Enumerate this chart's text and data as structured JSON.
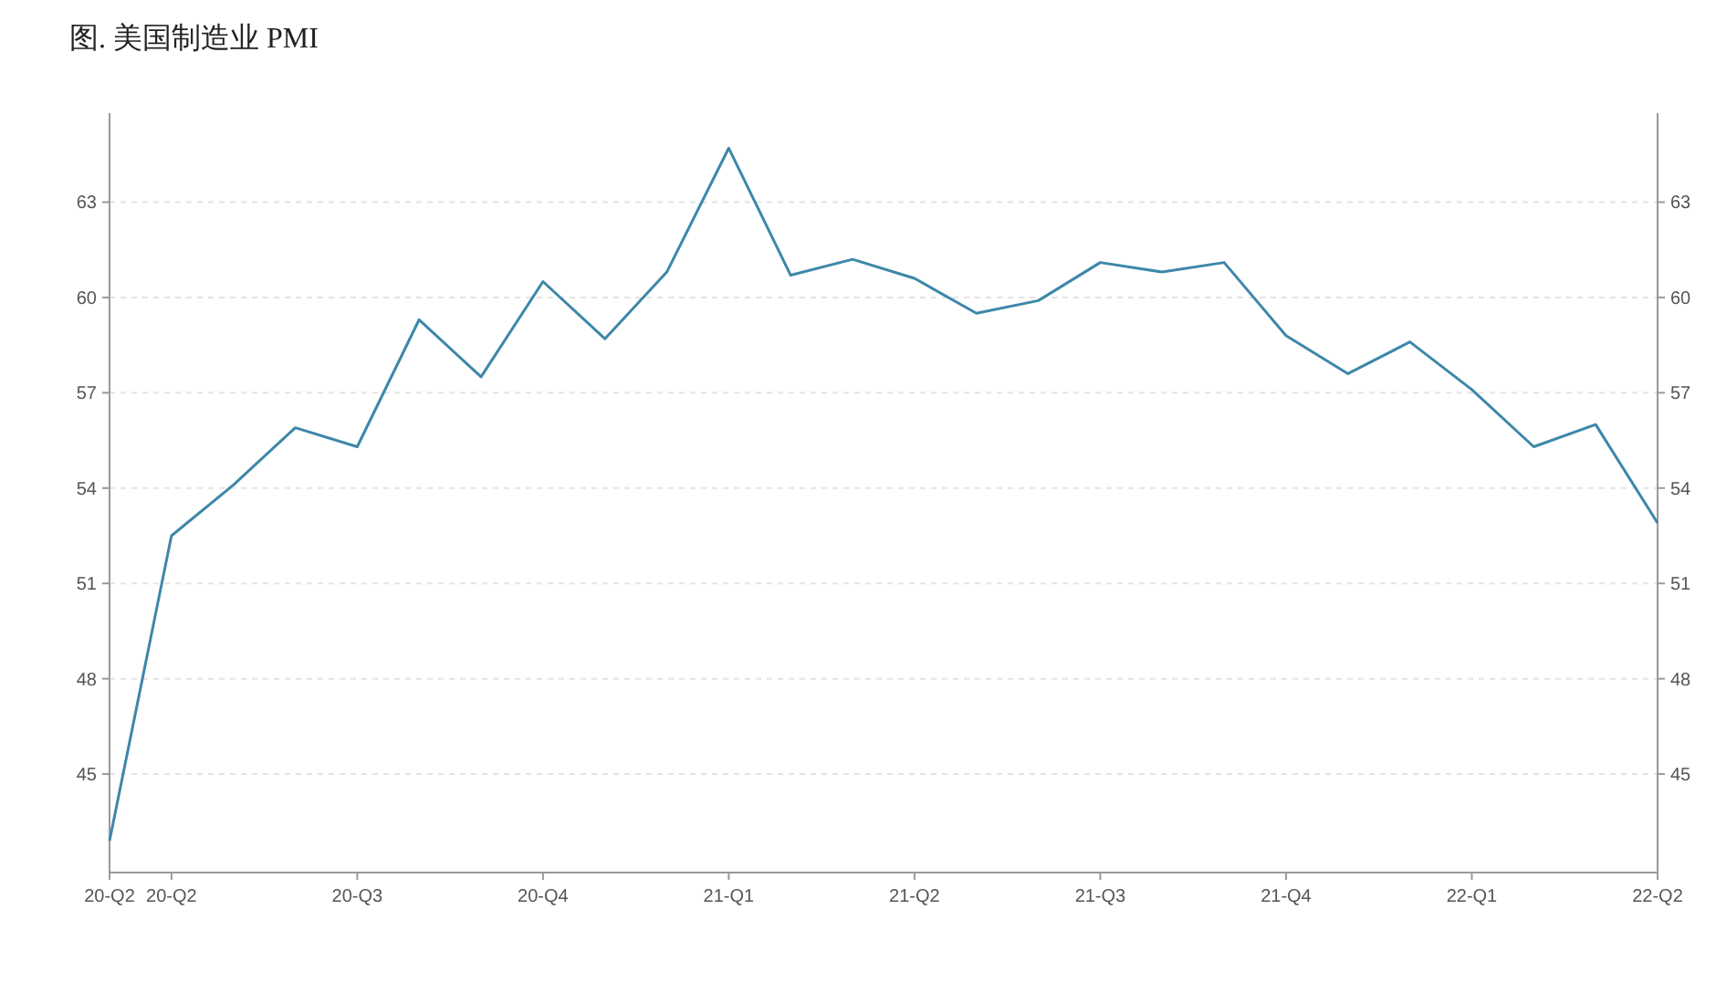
{
  "chart_data": {
    "type": "line",
    "title": "图. 美国制造业 PMI",
    "categories": [
      "20-Q2",
      "20-Q2",
      null,
      null,
      "20-Q3",
      null,
      null,
      "20-Q4",
      null,
      null,
      "21-Q1",
      null,
      null,
      "21-Q2",
      null,
      null,
      "21-Q3",
      null,
      null,
      "21-Q4",
      null,
      null,
      "22-Q1",
      null,
      null,
      "22-Q2"
    ],
    "series": [
      {
        "color": "#3d87a9",
        "values": [
          42.9,
          52.5,
          54.1,
          55.9,
          55.3,
          59.3,
          57.5,
          60.5,
          58.7,
          60.8,
          64.7,
          60.7,
          61.2,
          60.6,
          59.5,
          59.9,
          61.1,
          60.8,
          61.1,
          58.8,
          57.6,
          58.6,
          57.1,
          55.3,
          56.0,
          52.9
        ]
      }
    ],
    "ylim": [
      41.9,
      65.8
    ],
    "yticks": [
      45,
      48,
      51,
      54,
      57,
      60,
      63
    ],
    "y2lim": [
      41.9,
      65.8
    ],
    "y2ticks": [
      45,
      48,
      51,
      54,
      57,
      60,
      63
    ],
    "grid": "y"
  }
}
